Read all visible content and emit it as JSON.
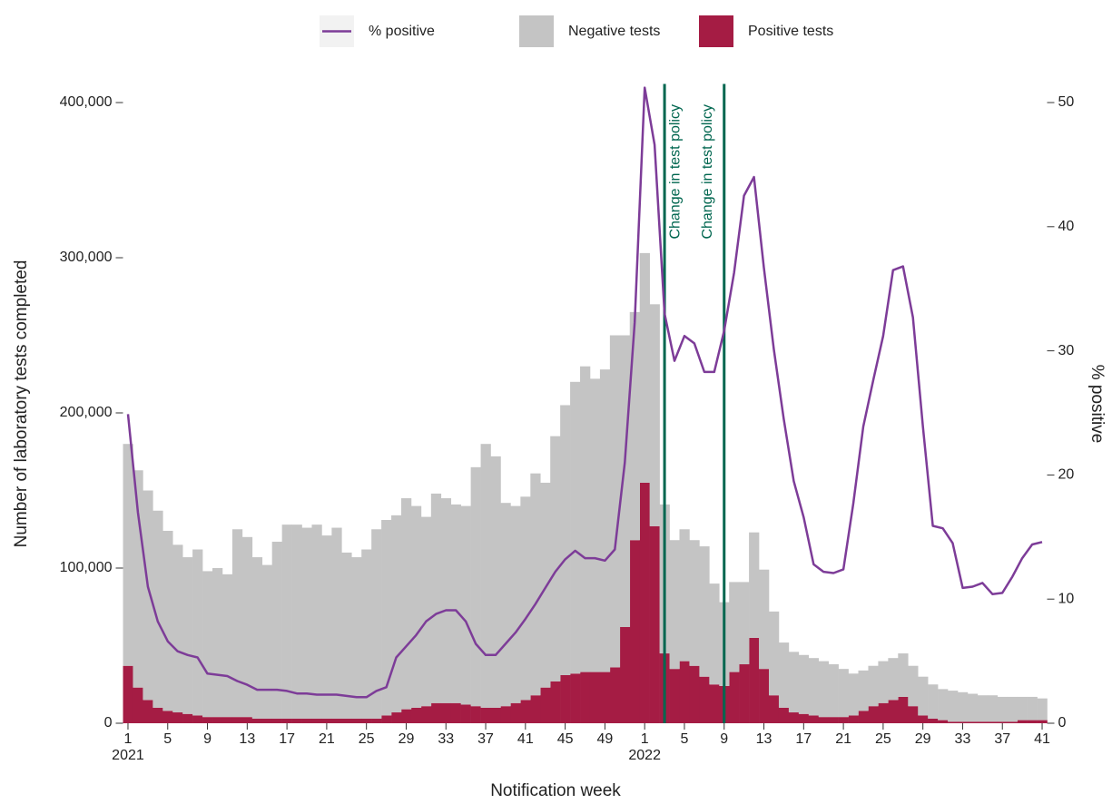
{
  "chart_data": {
    "type": "stacked-bar-line",
    "xlabel": "Notification week",
    "ylabel": "Number of laboratory tests completed",
    "y2label": "% positive",
    "categories": [
      "1",
      null,
      null,
      null,
      "5",
      null,
      null,
      null,
      "9",
      null,
      null,
      null,
      "13",
      null,
      null,
      null,
      "17",
      null,
      null,
      null,
      "21",
      null,
      null,
      null,
      "25",
      null,
      null,
      null,
      "29",
      null,
      null,
      null,
      "33",
      null,
      null,
      null,
      "37",
      null,
      null,
      null,
      "41",
      null,
      null,
      null,
      "45",
      null,
      null,
      null,
      "49",
      null,
      null,
      null,
      "1",
      null,
      null,
      null,
      "5",
      null,
      null,
      null,
      "9",
      null,
      null,
      null,
      "13",
      null,
      null,
      null,
      "17",
      null,
      null,
      null,
      "21",
      null,
      null,
      null,
      "25",
      null,
      null,
      null,
      "29",
      null,
      null,
      null,
      "33",
      null,
      null,
      null,
      "37",
      null,
      null,
      null,
      "41"
    ],
    "x_groups": [
      {
        "label": "2021",
        "start": 0
      },
      {
        "label": "2022",
        "start": 52
      }
    ],
    "series": [
      {
        "name": "% positive",
        "type": "line",
        "axis": "y2",
        "color": "#7d3c98",
        "values": [
          24.9,
          17,
          11,
          8.2,
          6.6,
          5.8,
          5.5,
          5.3,
          4,
          3.9,
          3.8,
          3.4,
          3.1,
          2.7,
          2.7,
          2.7,
          2.6,
          2.4,
          2.4,
          2.3,
          2.3,
          2.3,
          2.2,
          2.1,
          2.1,
          2.6,
          2.9,
          5.3,
          6.2,
          7.1,
          8.2,
          8.8,
          9.1,
          9.1,
          8.2,
          6.4,
          5.5,
          5.5,
          6.4,
          7.3,
          8.4,
          9.6,
          10.9,
          12.2,
          13.2,
          13.9,
          13.3,
          13.3,
          13.1,
          14,
          21,
          32.3,
          51.2,
          46.6,
          33,
          29.2,
          31.2,
          30.6,
          28.3,
          28.3,
          31.6,
          36.3,
          42.5,
          44,
          36.7,
          30.1,
          24.5,
          19.5,
          16.6,
          12.8,
          12.2,
          12.1,
          12.4,
          17.7,
          23.9,
          27.6,
          31.2,
          36.5,
          36.8,
          32.7,
          23.9,
          15.9,
          15.7,
          14.5,
          10.9,
          11,
          11.3,
          10.4,
          10.5,
          11.8,
          13.3,
          14.4,
          14.6
        ]
      },
      {
        "name": "Negative tests",
        "type": "bar",
        "color": "#c4c4c4",
        "values": [
          143000,
          140000,
          135000,
          127000,
          116000,
          108000,
          101000,
          107000,
          94000,
          96000,
          92000,
          121000,
          116000,
          104000,
          99000,
          114000,
          125000,
          125000,
          123000,
          125000,
          118000,
          123000,
          107000,
          104000,
          109000,
          122000,
          126000,
          127000,
          136000,
          130000,
          122000,
          135000,
          132000,
          128000,
          128000,
          154000,
          170000,
          162000,
          131000,
          127000,
          131000,
          143000,
          132000,
          158000,
          174000,
          188000,
          197000,
          189000,
          195000,
          214000,
          188000,
          147000,
          148000,
          143000,
          96000,
          83000,
          85000,
          81000,
          84000,
          65000,
          54000,
          58000,
          53000,
          68000,
          64000,
          54000,
          42000,
          39000,
          38000,
          37000,
          36000,
          34000,
          31000,
          27000,
          26000,
          26000,
          27000,
          27000,
          28000,
          26000,
          25000,
          22000,
          20000,
          20000,
          19000,
          18000,
          17000,
          17000,
          16000,
          16000,
          15000,
          15000,
          14000
        ]
      },
      {
        "name": "Positive tests",
        "type": "bar",
        "color": "#a51c44",
        "values": [
          37000,
          23000,
          15000,
          10000,
          8000,
          7000,
          6000,
          5000,
          4000,
          4000,
          4000,
          4000,
          4000,
          3000,
          3000,
          3000,
          3000,
          3000,
          3000,
          3000,
          3000,
          3000,
          3000,
          3000,
          3000,
          3000,
          5000,
          7000,
          9000,
          10000,
          11000,
          13000,
          13000,
          13000,
          12000,
          11000,
          10000,
          10000,
          11000,
          13000,
          15000,
          18000,
          23000,
          27000,
          31000,
          32000,
          33000,
          33000,
          33000,
          36000,
          62000,
          118000,
          155000,
          127000,
          45000,
          35000,
          40000,
          37000,
          30000,
          25000,
          24000,
          33000,
          38000,
          55000,
          35000,
          18000,
          10000,
          7000,
          6000,
          5000,
          4000,
          4000,
          4000,
          5000,
          8000,
          11000,
          13000,
          15000,
          17000,
          11000,
          5000,
          3000,
          2000,
          1000,
          1000,
          1000,
          1000,
          1000,
          1000,
          1000,
          2000,
          2000,
          2000
        ]
      }
    ],
    "ylim": [
      0,
      412000
    ],
    "yticks": [
      0,
      {
        "value": 100000,
        "label": "100,000"
      },
      {
        "value": 200000,
        "label": "200,000"
      },
      {
        "value": 300000,
        "label": "300,000"
      },
      {
        "value": 400000,
        "label": "400,000"
      }
    ],
    "y2lim": [
      0,
      51.5
    ],
    "y2ticks": [
      0,
      10,
      20,
      30,
      40,
      50
    ],
    "annotations": [
      {
        "text": "Change in test policy",
        "x_index": 54,
        "color": "#00664f"
      },
      {
        "text": "Change in test policy",
        "x_index": 60,
        "color": "#00664f"
      }
    ],
    "legend": "top",
    "grid": false
  }
}
